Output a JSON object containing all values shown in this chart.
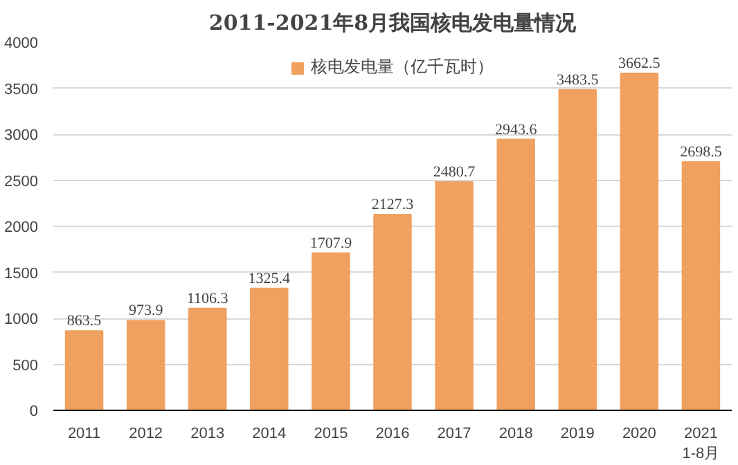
{
  "chart_data": {
    "type": "bar",
    "title": "2011-2021年8月我国核电发电量情况",
    "categories": [
      "2011",
      "2012",
      "2013",
      "2014",
      "2015",
      "2016",
      "2017",
      "2018",
      "2019",
      "2020",
      "2021\n1-8月"
    ],
    "series": [
      {
        "name": "核电发电量（亿千瓦时）",
        "color": "#f0a05f",
        "values": [
          863.5,
          973.9,
          1106.3,
          1325.4,
          1707.9,
          2127.3,
          2480.7,
          2943.6,
          3483.5,
          3662.5,
          2698.5
        ]
      }
    ],
    "ylim": [
      0,
      4000
    ],
    "yticks": [
      0,
      500,
      1000,
      1500,
      2000,
      2500,
      3000,
      3500,
      4000
    ],
    "grid": "y",
    "legend": "top",
    "data_labels": true
  }
}
